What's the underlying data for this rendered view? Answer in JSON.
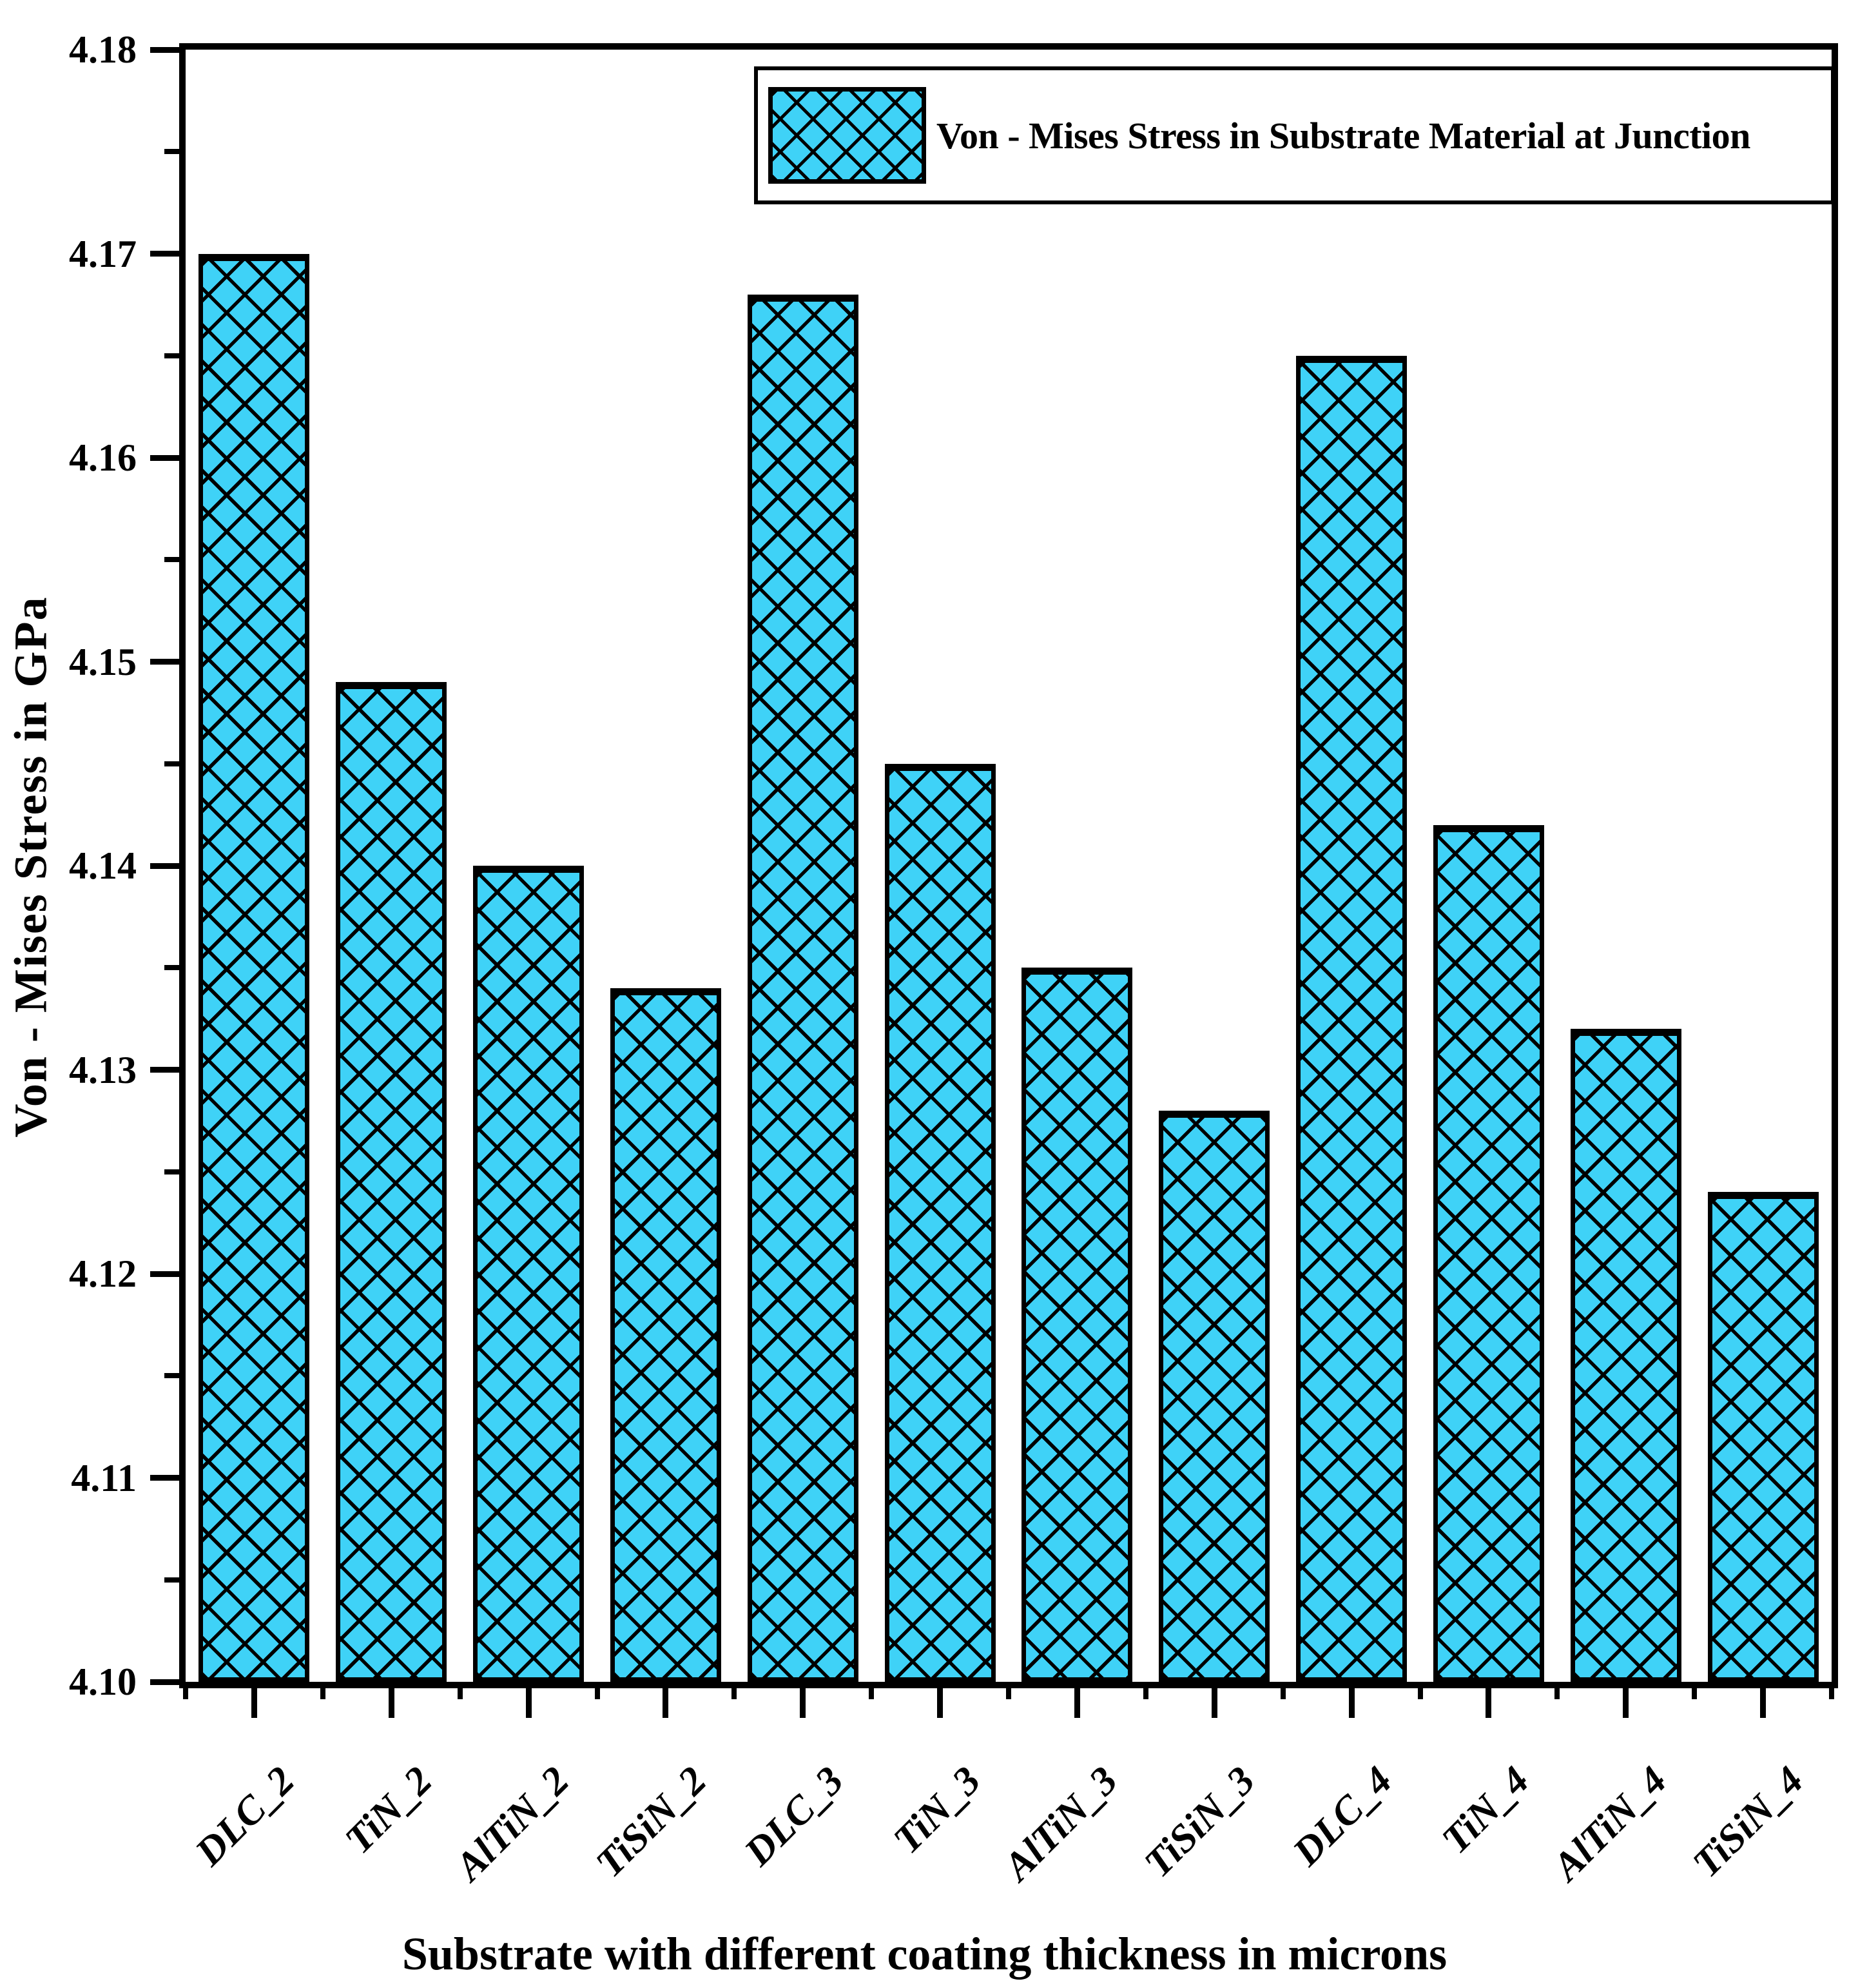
{
  "chart_data": {
    "type": "bar",
    "title": "",
    "categories": [
      "DLC_2",
      "TiN_2",
      "AlTiN_2",
      "TiSiN_2",
      "DLC_3",
      "TiN_3",
      "AlTiN_3",
      "TiSiN_3",
      "DLC_4",
      "TiN_4",
      "AlTiN_4",
      "TiSiN_4"
    ],
    "values": [
      4.17,
      4.149,
      4.14,
      4.134,
      4.168,
      4.145,
      4.135,
      4.128,
      4.165,
      4.142,
      4.132,
      4.124
    ],
    "series": [
      {
        "name": "Von - Mises Stress in Substrate Material at Junction",
        "values": [
          4.17,
          4.149,
          4.14,
          4.134,
          4.168,
          4.145,
          4.135,
          4.128,
          4.165,
          4.142,
          4.132,
          4.124
        ]
      }
    ],
    "xlabel": "Substrate with different coating thickness in microns",
    "ylabel": "Von - Mises Stress in GPa",
    "ylim": [
      4.1,
      4.18
    ],
    "ymajor_tick_labels": [
      "4.18",
      "4.17",
      "4.16",
      "4.15",
      "4.14",
      "4.13",
      "4.12",
      "4.11",
      "4.10"
    ],
    "ymajor_step": 0.01,
    "yminor_step": 0.005,
    "legend": "Von - Mises Stress in Substrate Material at Junction",
    "legend_position": "top-right",
    "grid": false,
    "bar_fill_color": "#3fd2f7",
    "bar_border_color": "#000000",
    "bar_pattern": "diagonal-crosshatch",
    "axis_color": "#000000",
    "background_color": "#ffffff"
  }
}
